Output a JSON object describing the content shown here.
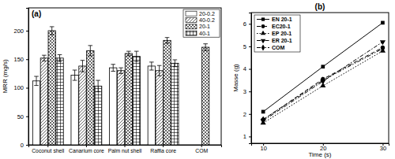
{
  "chart_data": [
    {
      "type": "bar",
      "title": "(a)",
      "y_label": "MRR (mg/s)",
      "categories": [
        "Coconut shell",
        "Canarium core",
        "Palm nut shell",
        "Raffia core",
        "COM"
      ],
      "series": [
        {
          "name": "20-0.2",
          "color": "#ffffff",
          "values": [
            112,
            122,
            135,
            138,
            null
          ],
          "errors": [
            8,
            9,
            6,
            7,
            null
          ]
        },
        {
          "name": "40-0.2",
          "color": "#ffffff",
          "values": [
            152,
            138,
            130,
            130,
            null
          ],
          "errors": [
            5,
            10,
            5,
            9,
            null
          ]
        },
        {
          "name": "20-1",
          "color": "#ffffff",
          "values": [
            200,
            165,
            160,
            183,
            171
          ],
          "errors": [
            7,
            9,
            4,
            5,
            6
          ]
        },
        {
          "name": "40-1",
          "color": "#ffffff",
          "values": [
            152,
            103,
            155,
            143,
            null
          ],
          "errors": [
            6,
            10,
            9,
            6,
            null
          ]
        }
      ],
      "ylim": [
        0,
        240
      ],
      "yticks": [
        0,
        50,
        100,
        150,
        200
      ],
      "legend": "upper right"
    },
    {
      "type": "line",
      "title": "(b)",
      "x_label": "Time (s)",
      "y_label": "Masse (g)",
      "x": [
        10,
        20,
        30
      ],
      "series": [
        {
          "name": "EN 20-1",
          "color": "#000000",
          "marker": "square",
          "line_style": "solid",
          "values": [
            2.1,
            4.1,
            6.05
          ]
        },
        {
          "name": "EC20-1",
          "color": "#000000",
          "marker": "circle",
          "line_style": "dashed",
          "values": [
            1.75,
            3.55,
            4.95
          ]
        },
        {
          "name": "EP 20-1",
          "color": "#000000",
          "marker": "triangle-up",
          "line_style": "dotted",
          "values": [
            1.6,
            3.25,
            4.8
          ]
        },
        {
          "name": "ER 20-1",
          "color": "#000000",
          "marker": "triangle-down",
          "line_style": "dashdot",
          "values": [
            1.7,
            3.45,
            5.2
          ]
        },
        {
          "name": "COM",
          "color": "#000000",
          "marker": "diamond",
          "line_style": "dashdotdot",
          "values": [
            1.75,
            3.5,
            4.9
          ]
        }
      ],
      "xlim": [
        8,
        31
      ],
      "xticks": [
        10,
        20,
        30
      ],
      "ylim": [
        0.7,
        6.5
      ],
      "yticks": [
        1,
        2,
        3,
        4,
        5,
        6
      ],
      "legend": "upper left"
    }
  ]
}
